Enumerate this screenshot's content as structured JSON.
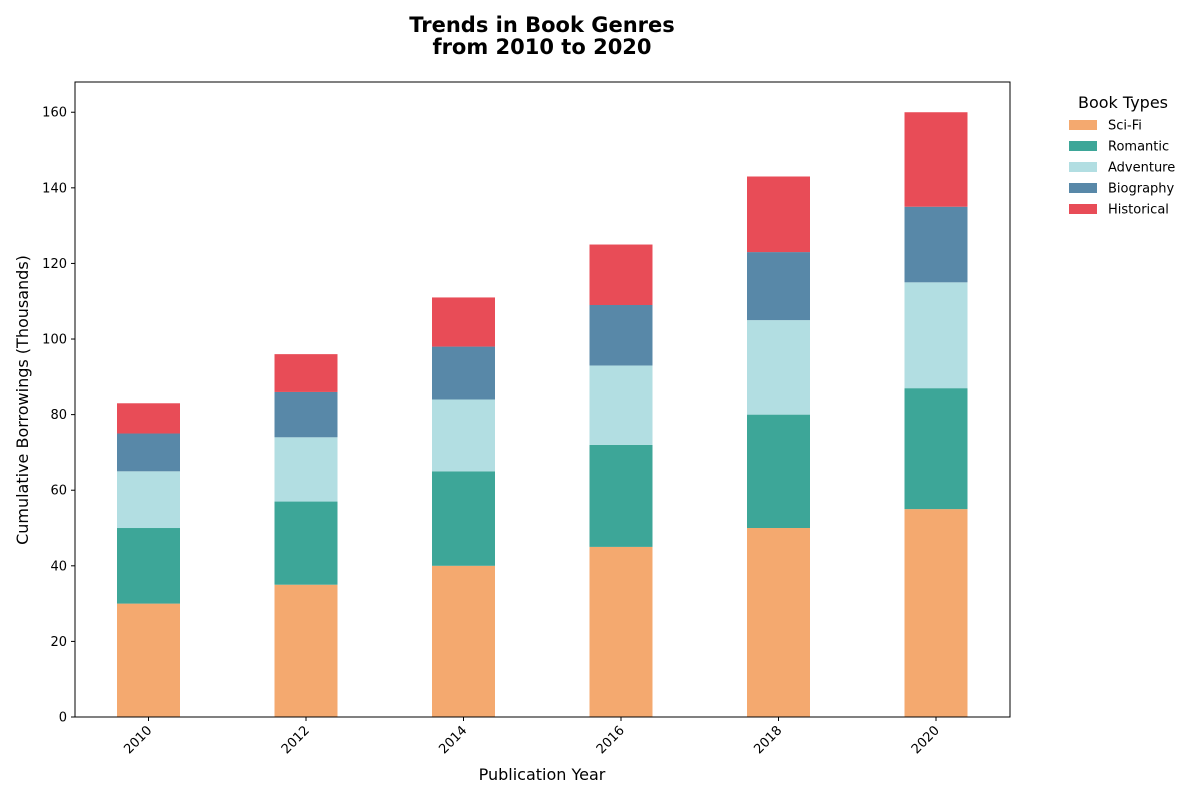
{
  "chart_data": {
    "type": "bar",
    "stacked": true,
    "title_lines": [
      "Trends in Book Genres",
      "from 2010 to 2020"
    ],
    "xlabel": "Publication Year",
    "ylabel": "Cumulative Borrowings (Thousands)",
    "categories": [
      "2010",
      "2012",
      "2014",
      "2016",
      "2018",
      "2020"
    ],
    "ylim": [
      0,
      168
    ],
    "yticks": [
      0,
      20,
      40,
      60,
      80,
      100,
      120,
      140,
      160
    ],
    "grid": false,
    "legend": {
      "title": "Book Types",
      "placement": "outside-top-right"
    },
    "series": [
      {
        "name": "Sci-Fi",
        "color": "#f4a96f",
        "values": [
          30,
          35,
          40,
          45,
          50,
          55
        ]
      },
      {
        "name": "Romantic",
        "color": "#3da698",
        "values": [
          20,
          22,
          25,
          27,
          30,
          32
        ]
      },
      {
        "name": "Adventure",
        "color": "#b2dee2",
        "values": [
          15,
          17,
          19,
          21,
          25,
          28
        ]
      },
      {
        "name": "Biography",
        "color": "#5888a8",
        "values": [
          10,
          12,
          14,
          16,
          18,
          20
        ]
      },
      {
        "name": "Historical",
        "color": "#e84c57",
        "values": [
          8,
          10,
          13,
          16,
          20,
          25
        ]
      }
    ]
  }
}
